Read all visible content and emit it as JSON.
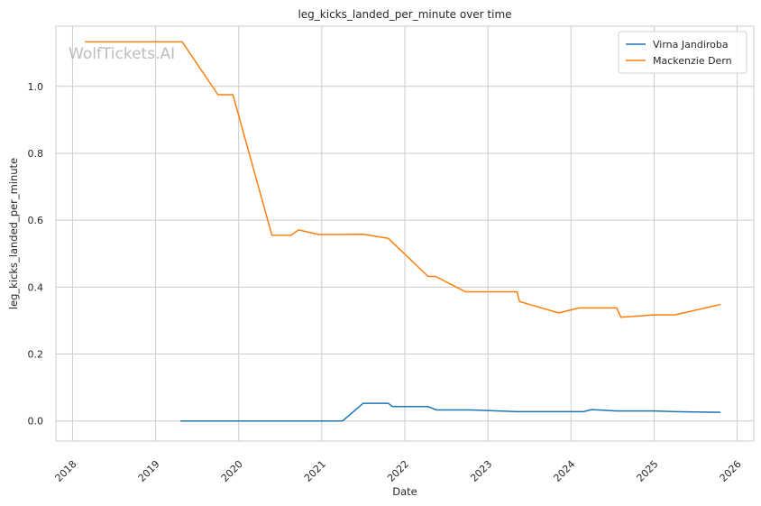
{
  "chart_data": {
    "type": "line",
    "title": "leg_kicks_landed_per_minute over time",
    "xlabel": "Date",
    "ylabel": "leg_kicks_landed_per_minute",
    "watermark": "WolfTickets.AI",
    "xlim": [
      2017.8,
      2026.2
    ],
    "ylim": [
      -0.06,
      1.18
    ],
    "x_ticks": [
      2018,
      2019,
      2020,
      2021,
      2022,
      2023,
      2024,
      2025,
      2026
    ],
    "x_tick_labels": [
      "2018",
      "2019",
      "2020",
      "2021",
      "2022",
      "2023",
      "2024",
      "2025",
      "2026"
    ],
    "y_ticks": [
      0.0,
      0.2,
      0.4,
      0.6,
      0.8,
      1.0
    ],
    "y_tick_labels": [
      "0.0",
      "0.2",
      "0.4",
      "0.6",
      "0.8",
      "1.0"
    ],
    "grid": true,
    "legend_position": "top-right",
    "series": [
      {
        "name": "Virna Jandiroba",
        "color": "#1f77b4",
        "points": [
          [
            2019.3,
            0.0
          ],
          [
            2021.25,
            0.0
          ],
          [
            2021.5,
            0.053
          ],
          [
            2021.8,
            0.053
          ],
          [
            2021.85,
            0.043
          ],
          [
            2022.28,
            0.043
          ],
          [
            2022.38,
            0.033
          ],
          [
            2022.8,
            0.033
          ],
          [
            2023.35,
            0.028
          ],
          [
            2024.15,
            0.028
          ],
          [
            2024.25,
            0.034
          ],
          [
            2024.55,
            0.03
          ],
          [
            2025.0,
            0.03
          ],
          [
            2025.25,
            0.028
          ],
          [
            2025.8,
            0.026
          ]
        ]
      },
      {
        "name": "Mackenzie Dern",
        "color": "#ff7f0e",
        "points": [
          [
            2018.15,
            1.133
          ],
          [
            2019.32,
            1.133
          ],
          [
            2019.75,
            0.975
          ],
          [
            2019.93,
            0.975
          ],
          [
            2020.4,
            0.555
          ],
          [
            2020.63,
            0.555
          ],
          [
            2020.72,
            0.571
          ],
          [
            2020.97,
            0.557
          ],
          [
            2021.5,
            0.558
          ],
          [
            2021.8,
            0.546
          ],
          [
            2022.28,
            0.432
          ],
          [
            2022.37,
            0.432
          ],
          [
            2022.73,
            0.386
          ],
          [
            2023.35,
            0.386
          ],
          [
            2023.38,
            0.357
          ],
          [
            2023.85,
            0.323
          ],
          [
            2024.1,
            0.338
          ],
          [
            2024.55,
            0.338
          ],
          [
            2024.6,
            0.31
          ],
          [
            2025.0,
            0.317
          ],
          [
            2025.25,
            0.317
          ],
          [
            2025.8,
            0.348
          ]
        ]
      }
    ]
  }
}
